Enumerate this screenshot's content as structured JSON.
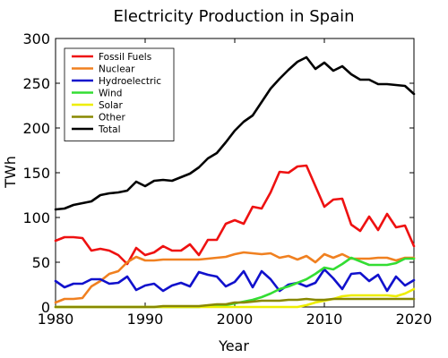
{
  "chart_data": {
    "type": "line",
    "title": "Electricity Production in Spain",
    "xlabel": "Year",
    "ylabel": "TWh",
    "xlim": [
      1980,
      2020
    ],
    "ylim": [
      0,
      300
    ],
    "x_ticks": [
      "1980",
      "1990",
      "2000",
      "2010",
      "2020"
    ],
    "y_ticks": [
      "0",
      "50",
      "100",
      "150",
      "200",
      "250",
      "300"
    ],
    "grid": false,
    "legend_position": "top-left",
    "x": [
      1980,
      1981,
      1982,
      1983,
      1984,
      1985,
      1986,
      1987,
      1988,
      1989,
      1990,
      1991,
      1992,
      1993,
      1994,
      1995,
      1996,
      1997,
      1998,
      1999,
      2000,
      2001,
      2002,
      2003,
      2004,
      2005,
      2006,
      2007,
      2008,
      2009,
      2010,
      2011,
      2012,
      2013,
      2014,
      2015,
      2016,
      2017,
      2018,
      2019,
      2020
    ],
    "series": [
      {
        "name": "Fossil Fuels",
        "color": "#ee1111",
        "values": [
          74,
          78,
          78,
          77,
          63,
          65,
          63,
          58,
          48,
          66,
          58,
          61,
          68,
          63,
          63,
          70,
          58,
          75,
          75,
          93,
          97,
          93,
          112,
          110,
          128,
          151,
          150,
          157,
          158,
          135,
          112,
          120,
          121,
          92,
          85,
          101,
          86,
          104,
          89,
          91,
          68
        ]
      },
      {
        "name": "Nuclear",
        "color": "#f08020",
        "values": [
          5,
          9,
          9,
          10,
          23,
          29,
          37,
          40,
          50,
          56,
          52,
          52,
          53,
          53,
          53,
          53,
          53,
          54,
          55,
          56,
          59,
          61,
          60,
          59,
          60,
          55,
          57,
          53,
          57,
          50,
          59,
          55,
          59,
          54,
          54,
          54,
          55,
          55,
          52,
          55,
          55
        ]
      },
      {
        "name": "Hydroelectric",
        "color": "#1111cc",
        "values": [
          29,
          22,
          26,
          26,
          31,
          31,
          26,
          27,
          34,
          19,
          24,
          26,
          18,
          24,
          27,
          23,
          39,
          36,
          34,
          23,
          28,
          40,
          22,
          40,
          31,
          18,
          25,
          27,
          23,
          27,
          42,
          32,
          20,
          37,
          38,
          29,
          36,
          18,
          34,
          24,
          30
        ]
      },
      {
        "name": "Wind",
        "color": "#33dd33",
        "values": [
          0,
          0,
          0,
          0,
          0,
          0,
          0,
          0,
          0,
          0,
          0,
          0,
          0,
          0,
          0,
          0,
          0,
          1,
          1,
          2,
          4,
          6,
          8,
          11,
          15,
          20,
          23,
          27,
          31,
          37,
          44,
          42,
          48,
          55,
          51,
          47,
          47,
          47,
          49,
          54,
          54
        ]
      },
      {
        "name": "Solar",
        "color": "#eeee00",
        "values": [
          0,
          0,
          0,
          0,
          0,
          0,
          0,
          0,
          0,
          0,
          0,
          0,
          0,
          0,
          0,
          0,
          0,
          0,
          0,
          0,
          0,
          0,
          0,
          0,
          0,
          0,
          0,
          0,
          2,
          5,
          7,
          9,
          12,
          13,
          13,
          13,
          13,
          13,
          12,
          15,
          20
        ]
      },
      {
        "name": "Other",
        "color": "#888800",
        "values": [
          0,
          0,
          0,
          0,
          0,
          0,
          0,
          0,
          0,
          0,
          0,
          0,
          1,
          1,
          1,
          1,
          1,
          2,
          3,
          3,
          5,
          5,
          6,
          7,
          7,
          7,
          8,
          8,
          9,
          8,
          8,
          9,
          9,
          9,
          9,
          9,
          9,
          9,
          9,
          9,
          9
        ]
      },
      {
        "name": "Total",
        "color": "#000000",
        "values": [
          109,
          110,
          114,
          116,
          118,
          125,
          127,
          128,
          130,
          140,
          135,
          141,
          142,
          141,
          145,
          149,
          156,
          166,
          172,
          184,
          197,
          207,
          214,
          229,
          244,
          255,
          265,
          274,
          279,
          266,
          273,
          264,
          269,
          260,
          254,
          254,
          249,
          249,
          248,
          247,
          238
        ]
      }
    ]
  }
}
